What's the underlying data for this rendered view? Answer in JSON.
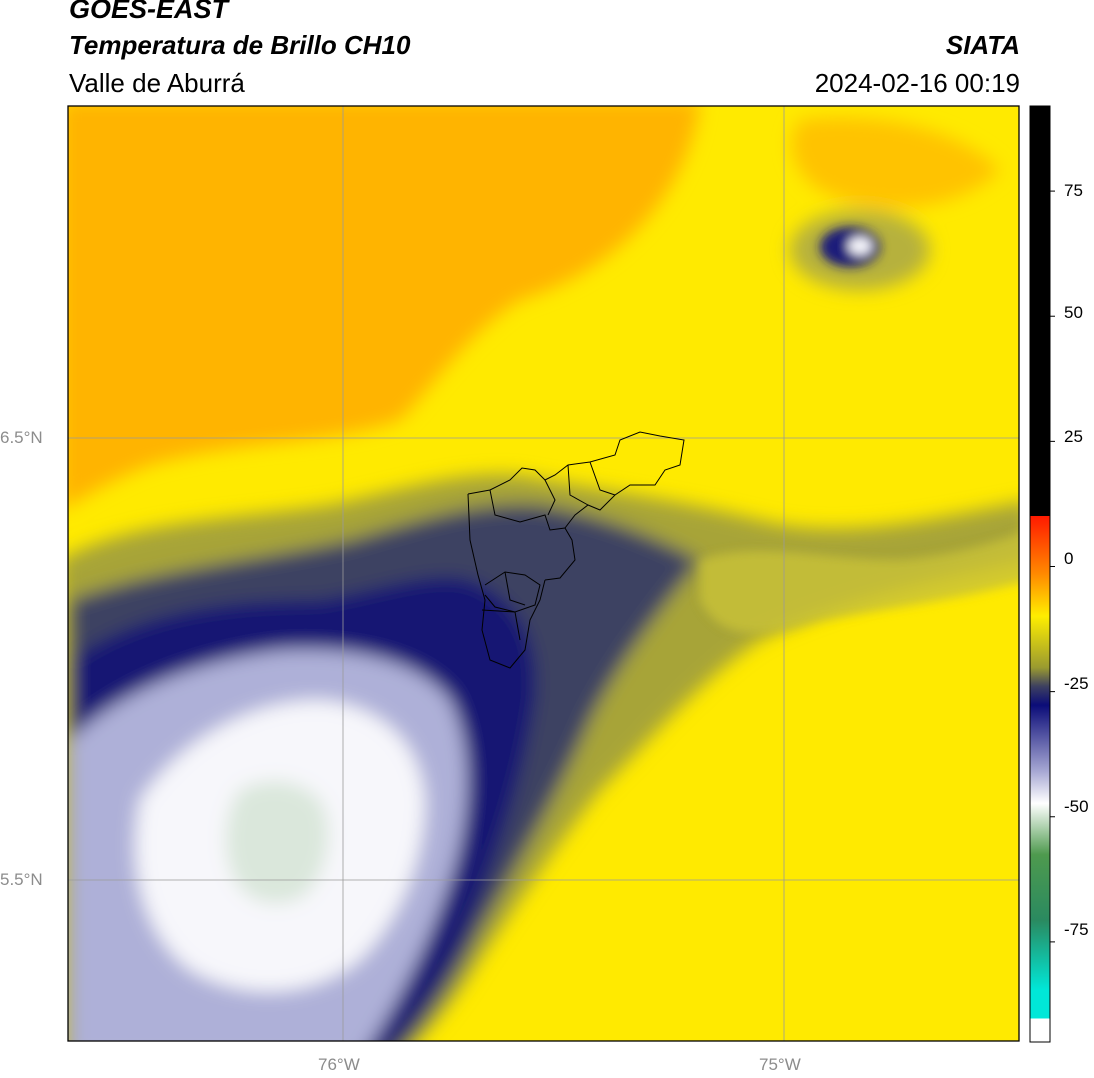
{
  "header": {
    "source": "GOES-EAST",
    "product": "Temperatura de Brillo CH10",
    "region": "Valle de Aburrá",
    "organization": "SIATA",
    "timestamp": "2024-02-16 00:19"
  },
  "axes": {
    "lat_labels": [
      "6.5°N",
      "5.5°N"
    ],
    "lon_labels": [
      "76°W",
      "75°W"
    ]
  },
  "colorbar": {
    "tick_labels": [
      "75",
      "50",
      "25",
      "0",
      "-25",
      "-50",
      "-75"
    ],
    "range": [
      -95,
      92
    ],
    "colors": {
      "black": "#000000",
      "red": "#ff2a00",
      "orange": "#ff8c00",
      "yellow": "#ffee00",
      "olive": "#8a8a2a",
      "navy": "#10126e",
      "lavender": "#b8b9dc",
      "white": "#ffffff",
      "green": "#3a8a3a",
      "cyan": "#00e6d6"
    }
  },
  "map": {
    "colors": {
      "background_yellow": "#ffea00",
      "orange_region": "#ffb300",
      "cloud_dark": "#3c4160",
      "cloud_navy": "#161a78",
      "cloud_light": "#d9daee",
      "cloud_white": "#f8f8fb",
      "cloud_green_core": "#dbe8dc",
      "boundary": "#000000",
      "grid": "#9a9a9a"
    }
  }
}
